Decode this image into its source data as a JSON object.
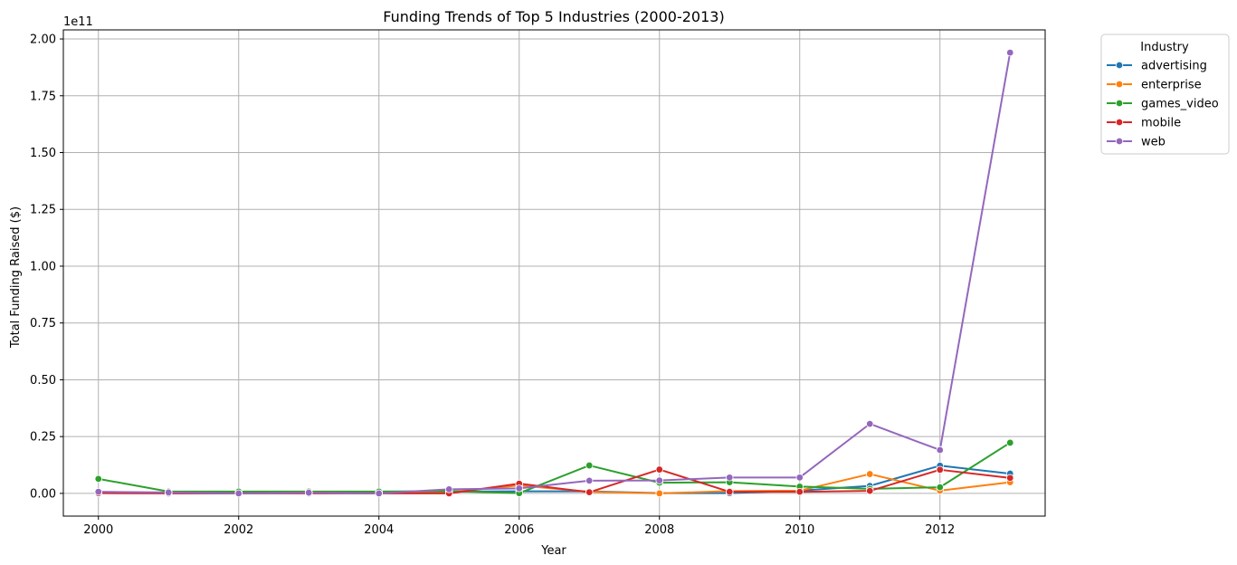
{
  "chart_data": {
    "type": "line",
    "title": "Funding Trends of Top 5 Industries (2000-2013)",
    "xlabel": "Year",
    "ylabel": "Total Funding Raised ($)",
    "y_offset_text": "1e11",
    "y_scale_factor": 100000000000,
    "xlim": [
      1999.5,
      2013.5
    ],
    "ylim": [
      -10000000000,
      204000000000
    ],
    "x_ticks": [
      2000,
      2002,
      2004,
      2006,
      2008,
      2010,
      2012
    ],
    "x_tick_labels": [
      "2000",
      "2002",
      "2004",
      "2006",
      "2008",
      "2010",
      "2012"
    ],
    "y_ticks": [
      0,
      25000000000,
      50000000000,
      75000000000,
      100000000000,
      125000000000,
      150000000000,
      175000000000,
      200000000000
    ],
    "y_tick_labels": [
      "0.00",
      "0.25",
      "0.50",
      "0.75",
      "1.00",
      "1.25",
      "1.50",
      "1.75",
      "2.00"
    ],
    "grid": true,
    "legend": {
      "title": "Industry",
      "placement": "outside-top-right"
    },
    "x": [
      2000,
      2001,
      2002,
      2003,
      2004,
      2005,
      2006,
      2007,
      2008,
      2009,
      2010,
      2011,
      2012,
      2013
    ],
    "series": [
      {
        "name": "advertising",
        "color": "#1f77b4",
        "values": [
          400000000,
          100000000,
          100000000,
          200000000,
          300000000,
          800000000,
          900000000,
          900000000,
          100000000,
          100000000,
          1200000000,
          3300000000,
          12200000000,
          8700000000
        ]
      },
      {
        "name": "enterprise",
        "color": "#ff7f0e",
        "values": [
          300000000,
          200000000,
          200000000,
          200000000,
          100000000,
          500000000,
          3500000000,
          700000000,
          0,
          1000000000,
          1200000000,
          8500000000,
          1200000000,
          4900000000
        ]
      },
      {
        "name": "games_video",
        "color": "#2ca02c",
        "values": [
          6400000000,
          800000000,
          800000000,
          800000000,
          800000000,
          1000000000,
          100000000,
          12300000000,
          4700000000,
          4900000000,
          3000000000,
          2000000000,
          2700000000,
          22300000000
        ]
      },
      {
        "name": "mobile",
        "color": "#d62728",
        "values": [
          100000000,
          0,
          0,
          0,
          0,
          0,
          4300000000,
          500000000,
          10500000000,
          700000000,
          700000000,
          1100000000,
          10400000000,
          6800000000
        ]
      },
      {
        "name": "web",
        "color": "#9467bd",
        "values": [
          700000000,
          400000000,
          0,
          300000000,
          0,
          1800000000,
          2200000000,
          5600000000,
          5700000000,
          7000000000,
          7000000000,
          30600000000,
          19100000000,
          194000000000
        ]
      }
    ]
  }
}
